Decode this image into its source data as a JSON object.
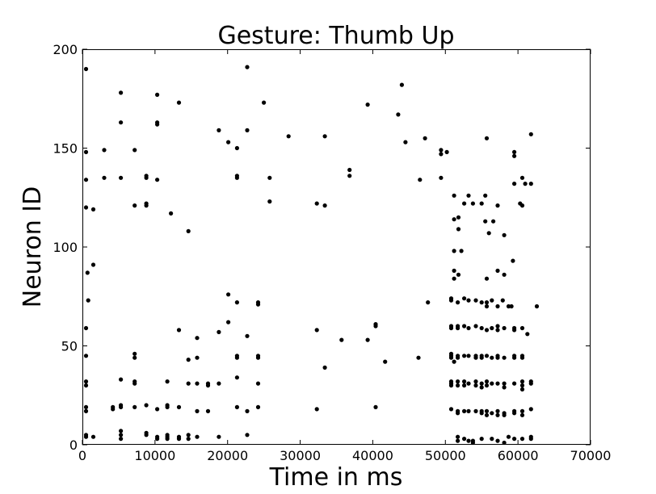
{
  "chart_data": {
    "type": "scatter",
    "title": "Gesture: Thumb Up",
    "xlabel": "Time in ms",
    "ylabel": "Neuron ID",
    "xlim": [
      0,
      70000
    ],
    "ylim": [
      0,
      200
    ],
    "xticks": [
      "0",
      "10000",
      "20000",
      "30000",
      "40000",
      "50000",
      "60000",
      "70000"
    ],
    "yticks": [
      "0",
      "50",
      "100",
      "150",
      "200"
    ],
    "grid": false,
    "marker_color": "#000000",
    "points": [
      [
        500,
        190
      ],
      [
        500,
        148
      ],
      [
        500,
        134
      ],
      [
        500,
        120
      ],
      [
        700,
        87
      ],
      [
        800,
        73
      ],
      [
        500,
        59
      ],
      [
        500,
        45
      ],
      [
        500,
        32
      ],
      [
        500,
        30
      ],
      [
        500,
        19
      ],
      [
        500,
        17
      ],
      [
        500,
        5
      ],
      [
        500,
        4
      ],
      [
        1500,
        119
      ],
      [
        1500,
        91
      ],
      [
        1500,
        4
      ],
      [
        3000,
        149
      ],
      [
        3000,
        135
      ],
      [
        4200,
        19
      ],
      [
        4200,
        18
      ],
      [
        5300,
        178
      ],
      [
        5300,
        163
      ],
      [
        5300,
        135
      ],
      [
        5300,
        33
      ],
      [
        5300,
        20
      ],
      [
        5300,
        19
      ],
      [
        5300,
        7
      ],
      [
        5300,
        5
      ],
      [
        5300,
        3
      ],
      [
        7200,
        149
      ],
      [
        7200,
        121
      ],
      [
        7200,
        46
      ],
      [
        7200,
        44
      ],
      [
        7200,
        32
      ],
      [
        7200,
        31
      ],
      [
        7200,
        19
      ],
      [
        8800,
        136
      ],
      [
        8800,
        135
      ],
      [
        8800,
        122
      ],
      [
        8800,
        121
      ],
      [
        8800,
        20
      ],
      [
        8800,
        6
      ],
      [
        8800,
        5
      ],
      [
        10300,
        177
      ],
      [
        10300,
        163
      ],
      [
        10300,
        162
      ],
      [
        10300,
        134
      ],
      [
        10300,
        18
      ],
      [
        10300,
        4
      ],
      [
        10300,
        3
      ],
      [
        11700,
        32
      ],
      [
        11700,
        20
      ],
      [
        11700,
        19
      ],
      [
        11700,
        5
      ],
      [
        11700,
        4
      ],
      [
        11700,
        3
      ],
      [
        12200,
        117
      ],
      [
        13300,
        173
      ],
      [
        13300,
        58
      ],
      [
        13300,
        19
      ],
      [
        13300,
        4
      ],
      [
        13300,
        3
      ],
      [
        14600,
        108
      ],
      [
        14600,
        43
      ],
      [
        14600,
        31
      ],
      [
        14600,
        5
      ],
      [
        14600,
        3
      ],
      [
        15800,
        54
      ],
      [
        15800,
        44
      ],
      [
        15800,
        31
      ],
      [
        15800,
        17
      ],
      [
        15800,
        4
      ],
      [
        17300,
        31
      ],
      [
        17300,
        30
      ],
      [
        17300,
        17
      ],
      [
        18800,
        159
      ],
      [
        18800,
        57
      ],
      [
        18800,
        31
      ],
      [
        18800,
        4
      ],
      [
        20100,
        153
      ],
      [
        20100,
        76
      ],
      [
        20100,
        62
      ],
      [
        21300,
        150
      ],
      [
        21300,
        136
      ],
      [
        21300,
        135
      ],
      [
        21300,
        72
      ],
      [
        21300,
        45
      ],
      [
        21300,
        44
      ],
      [
        21300,
        34
      ],
      [
        21300,
        19
      ],
      [
        22700,
        191
      ],
      [
        22700,
        159
      ],
      [
        22700,
        55
      ],
      [
        22700,
        17
      ],
      [
        22700,
        5
      ],
      [
        24200,
        72
      ],
      [
        24200,
        71
      ],
      [
        24200,
        45
      ],
      [
        24200,
        44
      ],
      [
        24200,
        31
      ],
      [
        24200,
        19
      ],
      [
        25000,
        173
      ],
      [
        25800,
        135
      ],
      [
        25800,
        123
      ],
      [
        28400,
        156
      ],
      [
        32300,
        122
      ],
      [
        32300,
        58
      ],
      [
        32300,
        18
      ],
      [
        33400,
        156
      ],
      [
        33400,
        121
      ],
      [
        33400,
        39
      ],
      [
        35700,
        53
      ],
      [
        36800,
        139
      ],
      [
        36800,
        136
      ],
      [
        39300,
        172
      ],
      [
        39300,
        53
      ],
      [
        40400,
        61
      ],
      [
        40400,
        60
      ],
      [
        40400,
        19
      ],
      [
        41700,
        42
      ],
      [
        43500,
        167
      ],
      [
        44000,
        182
      ],
      [
        44500,
        153
      ],
      [
        46300,
        44
      ],
      [
        46500,
        134
      ],
      [
        47200,
        155
      ],
      [
        47600,
        72
      ],
      [
        49400,
        149
      ],
      [
        49400,
        147
      ],
      [
        49400,
        135
      ],
      [
        50200,
        148
      ],
      [
        50800,
        74
      ],
      [
        50800,
        73
      ],
      [
        50800,
        60
      ],
      [
        50800,
        59
      ],
      [
        50800,
        46
      ],
      [
        50800,
        45
      ],
      [
        50800,
        44
      ],
      [
        50800,
        32
      ],
      [
        50800,
        31
      ],
      [
        50800,
        30
      ],
      [
        50800,
        18
      ],
      [
        51200,
        126
      ],
      [
        51200,
        114
      ],
      [
        51200,
        98
      ],
      [
        51200,
        88
      ],
      [
        51200,
        84
      ],
      [
        51200,
        42
      ],
      [
        51700,
        72
      ],
      [
        51700,
        60
      ],
      [
        51700,
        59
      ],
      [
        51700,
        45
      ],
      [
        51700,
        44
      ],
      [
        51700,
        32
      ],
      [
        51700,
        30
      ],
      [
        51700,
        17
      ],
      [
        51700,
        16
      ],
      [
        51700,
        4
      ],
      [
        51700,
        2
      ],
      [
        51800,
        115
      ],
      [
        51800,
        109
      ],
      [
        51800,
        86
      ],
      [
        52200,
        98
      ],
      [
        52600,
        122
      ],
      [
        52600,
        74
      ],
      [
        52600,
        60
      ],
      [
        52600,
        45
      ],
      [
        52600,
        32
      ],
      [
        52600,
        30
      ],
      [
        52600,
        17
      ],
      [
        52600,
        3
      ],
      [
        53200,
        126
      ],
      [
        53200,
        73
      ],
      [
        53200,
        59
      ],
      [
        53200,
        45
      ],
      [
        53200,
        31
      ],
      [
        53200,
        17
      ],
      [
        53200,
        2
      ],
      [
        53800,
        122
      ],
      [
        53800,
        2
      ],
      [
        53800,
        1
      ],
      [
        54200,
        73
      ],
      [
        54200,
        60
      ],
      [
        54200,
        45
      ],
      [
        54200,
        44
      ],
      [
        54200,
        32
      ],
      [
        54200,
        30
      ],
      [
        54200,
        17
      ],
      [
        55000,
        122
      ],
      [
        55000,
        72
      ],
      [
        55000,
        59
      ],
      [
        55000,
        45
      ],
      [
        55000,
        44
      ],
      [
        55000,
        31
      ],
      [
        55000,
        29
      ],
      [
        55000,
        17
      ],
      [
        55000,
        16
      ],
      [
        55000,
        3
      ],
      [
        55500,
        126
      ],
      [
        55500,
        113
      ],
      [
        55700,
        155
      ],
      [
        55700,
        84
      ],
      [
        55700,
        72
      ],
      [
        55700,
        70
      ],
      [
        55700,
        58
      ],
      [
        55700,
        45
      ],
      [
        55700,
        32
      ],
      [
        55700,
        30
      ],
      [
        55700,
        17
      ],
      [
        55700,
        15
      ],
      [
        56000,
        107
      ],
      [
        56400,
        73
      ],
      [
        56400,
        59
      ],
      [
        56400,
        44
      ],
      [
        56400,
        31
      ],
      [
        56400,
        16
      ],
      [
        56400,
        3
      ],
      [
        56600,
        113
      ],
      [
        57200,
        121
      ],
      [
        57200,
        88
      ],
      [
        57200,
        70
      ],
      [
        57200,
        60
      ],
      [
        57200,
        58
      ],
      [
        57200,
        45
      ],
      [
        57200,
        44
      ],
      [
        57200,
        31
      ],
      [
        57200,
        17
      ],
      [
        57200,
        15
      ],
      [
        57200,
        2
      ],
      [
        57900,
        73
      ],
      [
        58100,
        106
      ],
      [
        58100,
        86
      ],
      [
        58100,
        59
      ],
      [
        58100,
        44
      ],
      [
        58100,
        31
      ],
      [
        58100,
        29
      ],
      [
        58100,
        16
      ],
      [
        58100,
        15
      ],
      [
        58100,
        1
      ],
      [
        58700,
        70
      ],
      [
        58700,
        4
      ],
      [
        59100,
        70
      ],
      [
        59300,
        93
      ],
      [
        59500,
        148
      ],
      [
        59500,
        146
      ],
      [
        59500,
        132
      ],
      [
        59500,
        59
      ],
      [
        59500,
        58
      ],
      [
        59500,
        45
      ],
      [
        59500,
        44
      ],
      [
        59500,
        31
      ],
      [
        59500,
        17
      ],
      [
        59500,
        16
      ],
      [
        59500,
        3
      ],
      [
        60300,
        122
      ],
      [
        60600,
        135
      ],
      [
        60600,
        121
      ],
      [
        60600,
        59
      ],
      [
        60600,
        45
      ],
      [
        60600,
        44
      ],
      [
        60600,
        32
      ],
      [
        60600,
        30
      ],
      [
        60600,
        28
      ],
      [
        60600,
        17
      ],
      [
        60600,
        15
      ],
      [
        60600,
        3
      ],
      [
        61000,
        132
      ],
      [
        61300,
        56
      ],
      [
        61800,
        157
      ],
      [
        61800,
        132
      ],
      [
        61800,
        32
      ],
      [
        61800,
        31
      ],
      [
        61800,
        18
      ],
      [
        61800,
        4
      ],
      [
        61800,
        3
      ],
      [
        62600,
        70
      ]
    ]
  }
}
